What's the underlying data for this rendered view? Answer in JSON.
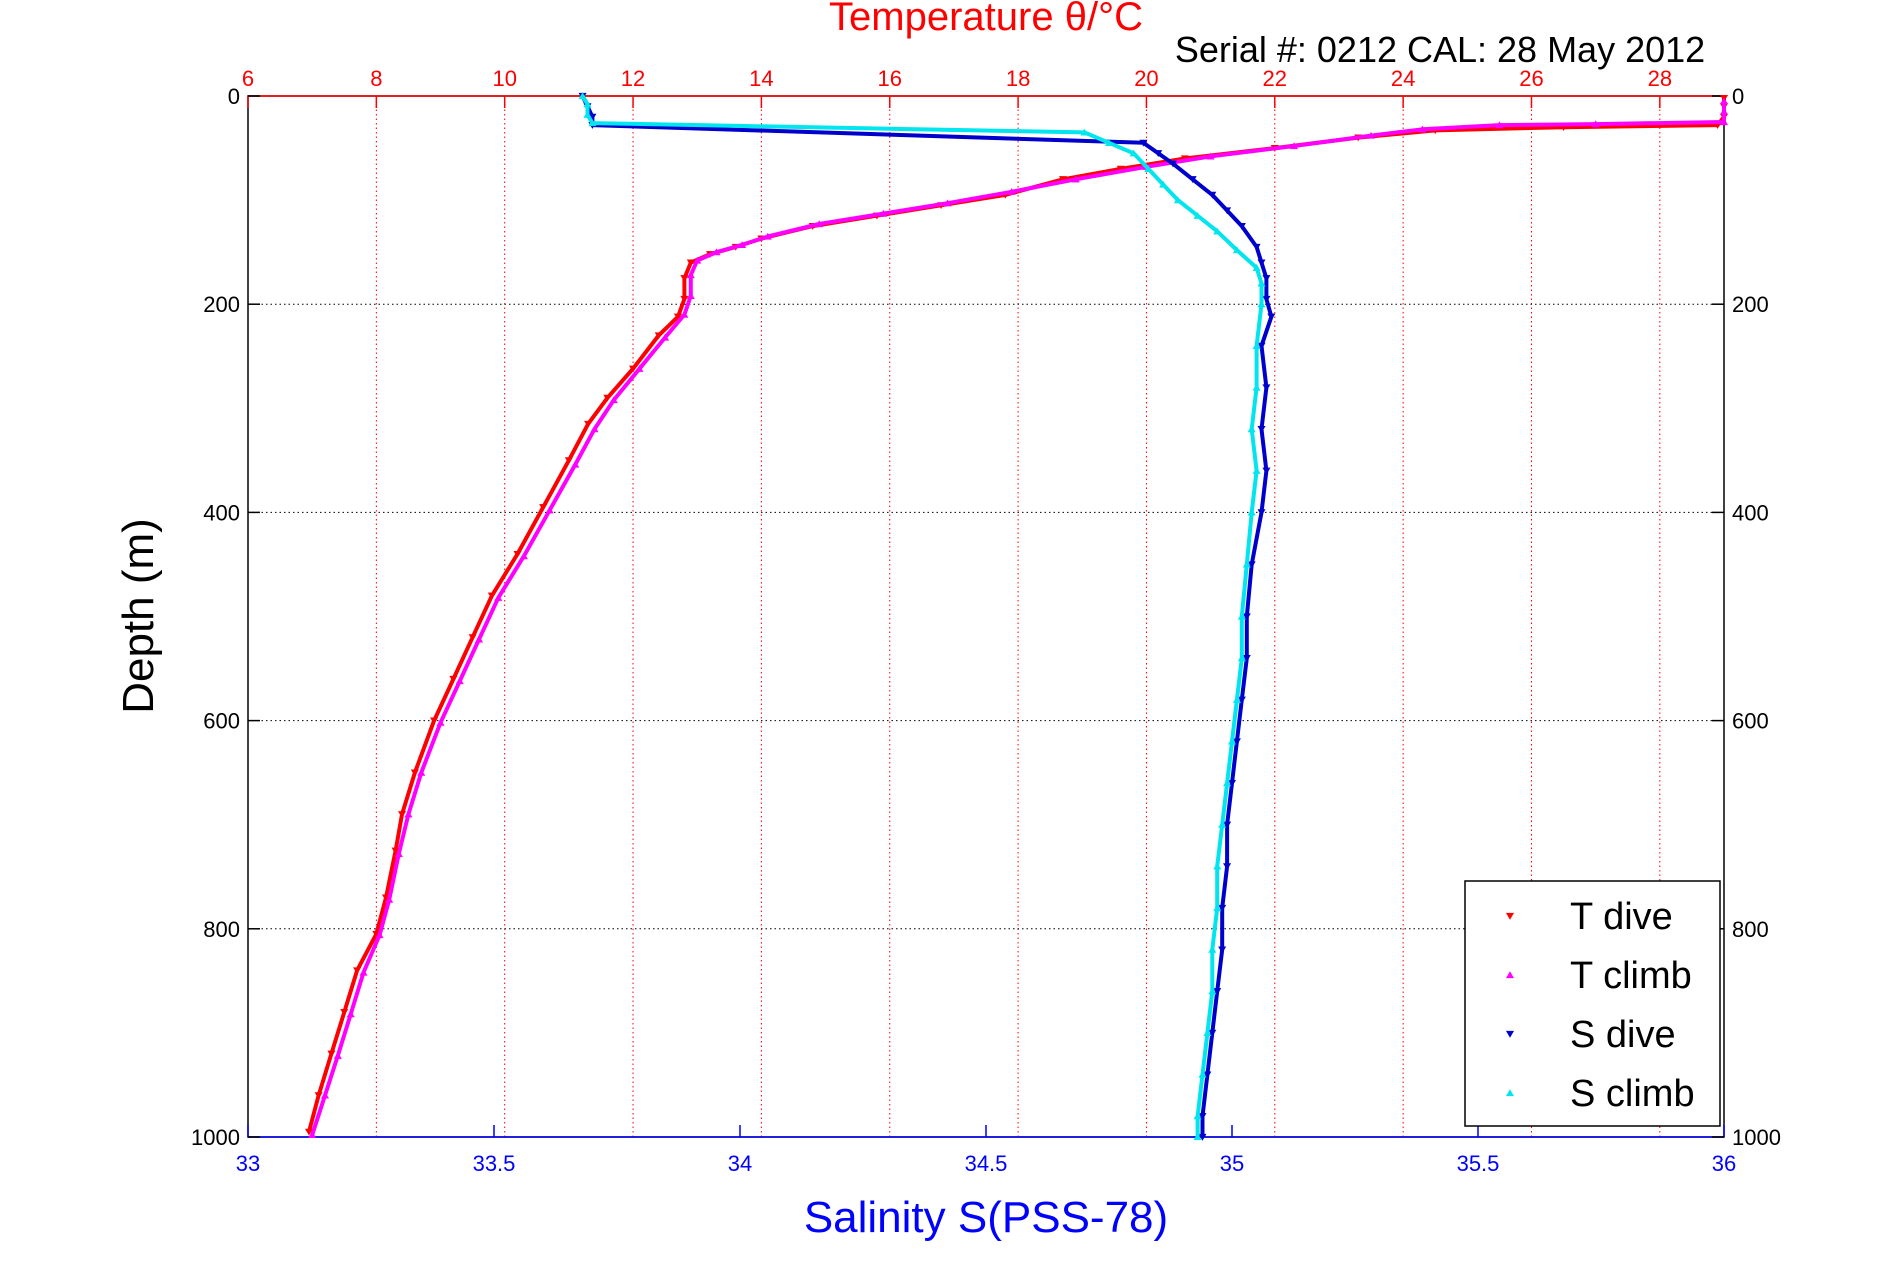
{
  "chart_data": {
    "type": "scatter",
    "title": "Temperature θ/°C",
    "subtitle": "Serial #: 0212  CAL: 28 May 2012",
    "ylabel": "Depth (m)",
    "xlabel": "Salinity S(PSS-78)",
    "y": {
      "min": 0,
      "max": 1000,
      "ticks": [
        0,
        200,
        400,
        600,
        800,
        1000
      ],
      "reversed": true
    },
    "x_temperature": {
      "min": 6,
      "max": 29,
      "ticks": [
        6,
        8,
        10,
        12,
        14,
        16,
        18,
        20,
        22,
        24,
        26,
        28
      ],
      "position": "top"
    },
    "x_salinity": {
      "min": 33,
      "max": 36,
      "ticks": [
        33,
        33.5,
        34,
        34.5,
        35,
        35.5,
        36
      ],
      "position": "bottom"
    },
    "grid": true,
    "legend_position": "bottom-right",
    "colors": {
      "temp_axis": "#ff0000",
      "sal_axis": "#0000ff",
      "t_dive": "#ff0000",
      "t_climb": "#ff00ff",
      "s_dive": "#0000cc",
      "s_climb": "#00e5ee"
    },
    "series": [
      {
        "name": "T dive",
        "axis": "temperature",
        "marker": "down",
        "color": "#ff0000",
        "points": [
          [
            29.0,
            2
          ],
          [
            29.0,
            10
          ],
          [
            29.0,
            20
          ],
          [
            28.9,
            28
          ],
          [
            26.5,
            30
          ],
          [
            24.5,
            33
          ],
          [
            23.3,
            40
          ],
          [
            22.0,
            50
          ],
          [
            20.6,
            60
          ],
          [
            19.6,
            70
          ],
          [
            18.7,
            80
          ],
          [
            17.8,
            95
          ],
          [
            16.8,
            105
          ],
          [
            15.8,
            115
          ],
          [
            14.8,
            125
          ],
          [
            14.0,
            137
          ],
          [
            13.6,
            145
          ],
          [
            13.2,
            152
          ],
          [
            12.9,
            160
          ],
          [
            12.8,
            175
          ],
          [
            12.8,
            195
          ],
          [
            12.7,
            212
          ],
          [
            12.4,
            230
          ],
          [
            12.0,
            262
          ],
          [
            11.6,
            290
          ],
          [
            11.3,
            315
          ],
          [
            11.0,
            350
          ],
          [
            10.6,
            395
          ],
          [
            10.2,
            440
          ],
          [
            9.8,
            480
          ],
          [
            9.5,
            520
          ],
          [
            9.2,
            560
          ],
          [
            8.9,
            600
          ],
          [
            8.6,
            650
          ],
          [
            8.4,
            690
          ],
          [
            8.3,
            725
          ],
          [
            8.15,
            770
          ],
          [
            8.0,
            805
          ],
          [
            7.7,
            840
          ],
          [
            7.5,
            880
          ],
          [
            7.3,
            920
          ],
          [
            7.1,
            960
          ],
          [
            6.95,
            995
          ]
        ]
      },
      {
        "name": "T climb",
        "axis": "temperature",
        "marker": "up",
        "color": "#ff00ff",
        "points": [
          [
            29.0,
            5
          ],
          [
            29.0,
            15
          ],
          [
            29.0,
            25
          ],
          [
            27.0,
            27
          ],
          [
            25.5,
            28
          ],
          [
            24.3,
            32
          ],
          [
            23.5,
            38
          ],
          [
            22.3,
            48
          ],
          [
            21.0,
            58
          ],
          [
            20.0,
            68
          ],
          [
            18.9,
            80
          ],
          [
            17.9,
            92
          ],
          [
            16.9,
            103
          ],
          [
            15.9,
            113
          ],
          [
            14.9,
            123
          ],
          [
            14.1,
            135
          ],
          [
            13.7,
            143
          ],
          [
            13.3,
            150
          ],
          [
            13.0,
            158
          ],
          [
            12.9,
            172
          ],
          [
            12.9,
            192
          ],
          [
            12.8,
            210
          ],
          [
            12.5,
            232
          ],
          [
            12.1,
            262
          ],
          [
            11.7,
            292
          ],
          [
            11.4,
            320
          ],
          [
            11.1,
            354
          ],
          [
            10.7,
            398
          ],
          [
            10.3,
            442
          ],
          [
            9.9,
            482
          ],
          [
            9.6,
            522
          ],
          [
            9.3,
            562
          ],
          [
            9.0,
            602
          ],
          [
            8.7,
            650
          ],
          [
            8.5,
            690
          ],
          [
            8.35,
            728
          ],
          [
            8.2,
            772
          ],
          [
            8.05,
            806
          ],
          [
            7.8,
            842
          ],
          [
            7.6,
            882
          ],
          [
            7.4,
            922
          ],
          [
            7.2,
            960
          ],
          [
            7.0,
            998
          ]
        ]
      },
      {
        "name": "S dive",
        "axis": "salinity",
        "marker": "down",
        "color": "#0000cc",
        "points": [
          [
            33.68,
            0
          ],
          [
            33.69,
            10
          ],
          [
            33.7,
            20
          ],
          [
            33.7,
            28
          ],
          [
            34.82,
            45
          ],
          [
            34.85,
            55
          ],
          [
            34.88,
            65
          ],
          [
            34.92,
            80
          ],
          [
            34.96,
            95
          ],
          [
            34.99,
            110
          ],
          [
            35.02,
            125
          ],
          [
            35.05,
            145
          ],
          [
            35.06,
            160
          ],
          [
            35.07,
            175
          ],
          [
            35.07,
            195
          ],
          [
            35.08,
            212
          ],
          [
            35.06,
            240
          ],
          [
            35.07,
            280
          ],
          [
            35.06,
            320
          ],
          [
            35.07,
            360
          ],
          [
            35.06,
            400
          ],
          [
            35.04,
            450
          ],
          [
            35.03,
            500
          ],
          [
            35.03,
            540
          ],
          [
            35.02,
            580
          ],
          [
            35.01,
            620
          ],
          [
            35.0,
            660
          ],
          [
            34.99,
            700
          ],
          [
            34.99,
            740
          ],
          [
            34.98,
            780
          ],
          [
            34.98,
            820
          ],
          [
            34.97,
            860
          ],
          [
            34.96,
            900
          ],
          [
            34.95,
            940
          ],
          [
            34.94,
            980
          ],
          [
            34.94,
            1000
          ]
        ]
      },
      {
        "name": "S climb",
        "axis": "salinity",
        "marker": "up",
        "color": "#00e5ee",
        "points": [
          [
            33.68,
            0
          ],
          [
            33.69,
            8
          ],
          [
            33.69,
            18
          ],
          [
            33.7,
            26
          ],
          [
            34.7,
            35
          ],
          [
            34.75,
            45
          ],
          [
            34.8,
            55
          ],
          [
            34.83,
            70
          ],
          [
            34.86,
            85
          ],
          [
            34.89,
            100
          ],
          [
            34.93,
            115
          ],
          [
            34.97,
            130
          ],
          [
            35.01,
            148
          ],
          [
            35.05,
            165
          ],
          [
            35.06,
            180
          ],
          [
            35.06,
            200
          ],
          [
            35.05,
            240
          ],
          [
            35.05,
            280
          ],
          [
            35.04,
            320
          ],
          [
            35.05,
            360
          ],
          [
            35.04,
            400
          ],
          [
            35.03,
            450
          ],
          [
            35.02,
            500
          ],
          [
            35.02,
            540
          ],
          [
            35.01,
            580
          ],
          [
            35.0,
            620
          ],
          [
            34.99,
            660
          ],
          [
            34.98,
            700
          ],
          [
            34.97,
            740
          ],
          [
            34.97,
            780
          ],
          [
            34.96,
            820
          ],
          [
            34.96,
            860
          ],
          [
            34.95,
            900
          ],
          [
            34.94,
            940
          ],
          [
            34.93,
            980
          ],
          [
            34.93,
            1000
          ]
        ]
      }
    ]
  }
}
